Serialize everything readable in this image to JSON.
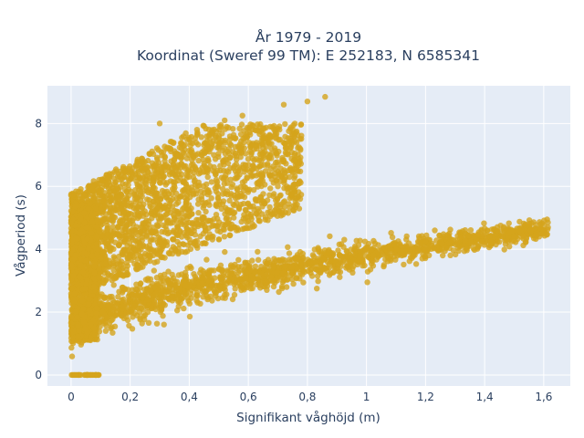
{
  "chart_data": {
    "type": "scatter",
    "title_line1": "År 1979 - 2019",
    "title_line2": "Koordinat (Sweref 99 TM): E 252183, N 6585341",
    "xlabel": "Signifikant våghöjd (m)",
    "ylabel": "Vågperiod (s)",
    "xlim": [
      -0.08,
      1.69
    ],
    "ylim": [
      -0.35,
      9.2
    ],
    "x_ticks": [
      0,
      0.2,
      0.4,
      0.6,
      0.8,
      1,
      1.2,
      1.4,
      1.6
    ],
    "x_tick_labels": [
      "0",
      "0,2",
      "0,4",
      "0,6",
      "0,8",
      "1",
      "1,2",
      "1,4",
      "1,6"
    ],
    "y_ticks": [
      0,
      2,
      4,
      6,
      8
    ],
    "y_tick_labels": [
      "0",
      "2",
      "4",
      "6",
      "8"
    ],
    "grid": true,
    "marker_color": "#D4A41C",
    "plot_bg": "#E5ECF6",
    "clusters": {
      "wind_sea": {
        "x_range": [
          0,
          1.62
        ],
        "y_at_x_min": 1.4,
        "y_at_x_max": 5.2,
        "spread": 0.35
      },
      "swell": {
        "x_range": [
          0,
          0.85
        ],
        "y_at_x_min": 3.0,
        "y_at_x_max": 8.8,
        "spread": 1.2
      },
      "zero_line": {
        "x_range": [
          0,
          0.1
        ],
        "y": 0
      }
    },
    "sample_points": [
      [
        0,
        0
      ],
      [
        0.05,
        0
      ],
      [
        0.1,
        0
      ],
      [
        0.02,
        1.1
      ],
      [
        0.05,
        5.5
      ],
      [
        0.1,
        6.3
      ],
      [
        0.2,
        6.9
      ],
      [
        0.3,
        7.8
      ],
      [
        0.4,
        7.9
      ],
      [
        0.5,
        8.1
      ],
      [
        0.6,
        7.6
      ],
      [
        0.7,
        7.9
      ],
      [
        0.8,
        8.7
      ],
      [
        0.85,
        8.85
      ],
      [
        0.2,
        2.2
      ],
      [
        0.4,
        2.9
      ],
      [
        0.6,
        3.4
      ],
      [
        0.8,
        3.9
      ],
      [
        1.0,
        4.2
      ],
      [
        1.2,
        4.5
      ],
      [
        1.4,
        4.8
      ],
      [
        1.6,
        5.2
      ]
    ]
  }
}
